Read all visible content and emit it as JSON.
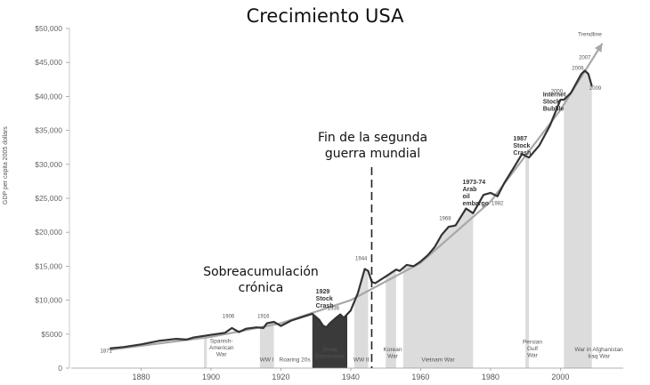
{
  "title": "Crecimiento USA",
  "callouts": {
    "wwii": [
      "Fin de la segunda",
      "guerra mundial"
    ],
    "overacc": [
      "Sobreacumulación",
      "crónica"
    ]
  },
  "chart_data": {
    "type": "line",
    "title": "Crecimiento USA",
    "ylabel": "GDP per capita 2005 dollars",
    "xlim": [
      1860,
      2018
    ],
    "ylim": [
      0,
      50000
    ],
    "x_ticks": [
      1880,
      1900,
      1920,
      1940,
      1960,
      1980,
      2000
    ],
    "x_tick_labels": [
      "1880",
      "1900",
      "1920",
      "1940",
      "1960",
      "1980",
      "2000"
    ],
    "y_ticks": [
      0,
      5000,
      10000,
      15000,
      20000,
      25000,
      30000,
      35000,
      40000,
      45000,
      50000
    ],
    "y_tick_labels": [
      "0",
      "$5000",
      "$10,000",
      "$15,000",
      "$20,000",
      "$25,000",
      "$30,000",
      "$35,000",
      "$40,000",
      "$45,000",
      "$50,000"
    ],
    "grid": false,
    "series": [
      {
        "values": [
          [
            1871,
            2900
          ],
          [
            1875,
            3100
          ],
          [
            1880,
            3500
          ],
          [
            1885,
            4000
          ],
          [
            1890,
            4300
          ],
          [
            1893,
            4200
          ],
          [
            1895,
            4500
          ],
          [
            1900,
            4900
          ],
          [
            1904,
            5200
          ],
          [
            1906,
            5900
          ],
          [
            1908,
            5300
          ],
          [
            1910,
            5800
          ],
          [
            1913,
            6000
          ],
          [
            1915,
            5900
          ],
          [
            1916,
            6600
          ],
          [
            1918,
            6800
          ],
          [
            1920,
            6200
          ],
          [
            1923,
            7000
          ],
          [
            1926,
            7500
          ],
          [
            1929,
            8000
          ],
          [
            1931,
            7100
          ],
          [
            1932,
            6300
          ],
          [
            1933,
            6000
          ],
          [
            1934,
            6600
          ],
          [
            1936,
            7500
          ],
          [
            1937,
            7900
          ],
          [
            1938,
            7400
          ],
          [
            1940,
            8500
          ],
          [
            1942,
            11000
          ],
          [
            1944,
            14600
          ],
          [
            1945,
            14300
          ],
          [
            1946,
            12700
          ],
          [
            1947,
            12500
          ],
          [
            1950,
            13500
          ],
          [
            1953,
            14500
          ],
          [
            1954,
            14300
          ],
          [
            1956,
            15200
          ],
          [
            1958,
            15000
          ],
          [
            1960,
            15700
          ],
          [
            1962,
            16600
          ],
          [
            1964,
            17800
          ],
          [
            1966,
            19600
          ],
          [
            1968,
            20800
          ],
          [
            1970,
            21000
          ],
          [
            1973,
            23500
          ],
          [
            1975,
            22800
          ],
          [
            1978,
            25500
          ],
          [
            1980,
            25800
          ],
          [
            1982,
            25300
          ],
          [
            1984,
            27300
          ],
          [
            1987,
            29800
          ],
          [
            1989,
            31500
          ],
          [
            1991,
            31000
          ],
          [
            1994,
            32800
          ],
          [
            1997,
            35700
          ],
          [
            2000,
            39500
          ],
          [
            2001,
            39500
          ],
          [
            2003,
            40500
          ],
          [
            2006,
            43300
          ],
          [
            2007,
            43800
          ],
          [
            2008,
            43300
          ],
          [
            2009,
            41500
          ]
        ]
      },
      {
        "name": "Trendline",
        "values": [
          [
            1871,
            2700
          ],
          [
            1900,
            4600
          ],
          [
            1920,
            6600
          ],
          [
            1940,
            10000
          ],
          [
            1960,
            15500
          ],
          [
            1980,
            24500
          ],
          [
            2000,
            38000
          ],
          [
            2012,
            47800
          ]
        ]
      }
    ],
    "shaded_periods": [
      {
        "label": "Spanish-American War",
        "from": 1898,
        "to": 1898.8
      },
      {
        "label": "WW I",
        "from": 1914,
        "to": 1918
      },
      {
        "label": "Great Depression",
        "from": 1929,
        "to": 1939
      },
      {
        "label": "WW II",
        "from": 1941,
        "to": 1945
      },
      {
        "label": "Korean War",
        "from": 1950,
        "to": 1953
      },
      {
        "label": "Vietnam War",
        "from": 1955,
        "to": 1975
      },
      {
        "label": "Persian Gulf War",
        "from": 1990,
        "to": 1991
      },
      {
        "label": "War in Afghanistan Iraq War",
        "from": 2001,
        "to": 2009
      }
    ],
    "period_labels": [
      {
        "lines": [
          "Spanish-",
          "American",
          "War"
        ],
        "x": 1903,
        "y": 3700
      },
      {
        "lines": [
          "WW I"
        ],
        "x": 1916,
        "y": 1000
      },
      {
        "lines": [
          "Roaring 20s"
        ],
        "x": 1924,
        "y": 1000
      },
      {
        "lines": [
          "Great",
          "Depression"
        ],
        "x": 1934,
        "y": 2500
      },
      {
        "lines": [
          "WW II"
        ],
        "x": 1943,
        "y": 1000
      },
      {
        "lines": [
          "Korean",
          "War"
        ],
        "x": 1952,
        "y": 2500
      },
      {
        "lines": [
          "Vietnam War"
        ],
        "x": 1965,
        "y": 1000
      },
      {
        "lines": [
          "Persian",
          "Gulf",
          "War"
        ],
        "x": 1992,
        "y": 3600
      },
      {
        "lines": [
          "War in Afghanistan",
          "Iraq War"
        ],
        "x": 2011,
        "y": 2500
      }
    ],
    "event_labels": [
      {
        "lines": [
          "1929",
          "Stock",
          "Crash"
        ],
        "x": 1930,
        "y": 11000
      },
      {
        "lines": [
          "1973-74",
          "Arab",
          "oil",
          "embargo"
        ],
        "x": 1972,
        "y": 27100
      },
      {
        "lines": [
          "1987",
          "Stock",
          "Crash"
        ],
        "x": 1986.5,
        "y": 33500
      },
      {
        "lines": [
          "Internet",
          "Stock",
          "Bubble"
        ],
        "x": 1995,
        "y": 40000
      }
    ],
    "year_labels": [
      {
        "text": "1871",
        "x": 1870,
        "y": 2300
      },
      {
        "text": "1906",
        "x": 1905,
        "y": 7400
      },
      {
        "text": "1916",
        "x": 1915,
        "y": 7400
      },
      {
        "text": "1936",
        "x": 1935,
        "y": 8600
      },
      {
        "text": "1944",
        "x": 1943,
        "y": 15900
      },
      {
        "text": "1968",
        "x": 1967,
        "y": 21800
      },
      {
        "text": "1982",
        "x": 1982,
        "y": 24000
      },
      {
        "text": "2000",
        "x": 1999,
        "y": 40500
      },
      {
        "text": "2006",
        "x": 2005,
        "y": 43900
      },
      {
        "text": "2007",
        "x": 2007,
        "y": 45500
      },
      {
        "text": "2009",
        "x": 2010,
        "y": 41000
      }
    ],
    "reference_line": {
      "x": 1946,
      "style": "dashed",
      "label": "Fin de la segunda guerra mundial"
    },
    "trend_label": "Trendline"
  }
}
